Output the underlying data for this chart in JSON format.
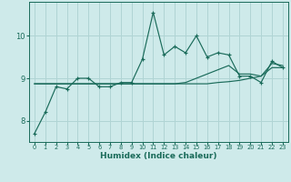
{
  "title": "",
  "xlabel": "Humidex (Indice chaleur)",
  "ylabel": "",
  "bg_color": "#ceeaea",
  "grid_color": "#b0d4d4",
  "line_color": "#1a6b5a",
  "xlim": [
    -0.5,
    23.5
  ],
  "ylim": [
    7.5,
    10.8
  ],
  "xticks": [
    0,
    1,
    2,
    3,
    4,
    5,
    6,
    7,
    8,
    9,
    10,
    11,
    12,
    13,
    14,
    15,
    16,
    17,
    18,
    19,
    20,
    21,
    22,
    23
  ],
  "yticks": [
    8,
    9,
    10
  ],
  "series1_x": [
    0,
    1,
    2,
    3,
    4,
    5,
    6,
    7,
    8,
    9,
    10,
    11,
    12,
    13,
    14,
    15,
    16,
    17,
    18,
    19,
    20,
    21,
    22,
    23
  ],
  "series1_y": [
    7.7,
    8.2,
    8.8,
    8.75,
    9.0,
    9.0,
    8.8,
    8.8,
    8.9,
    8.9,
    9.45,
    10.55,
    9.55,
    9.75,
    9.6,
    10.0,
    9.5,
    9.6,
    9.55,
    9.05,
    9.05,
    8.9,
    9.4,
    9.25
  ],
  "series2_x": [
    0,
    1,
    2,
    3,
    4,
    5,
    6,
    7,
    8,
    9,
    10,
    11,
    12,
    13,
    14,
    15,
    16,
    17,
    18,
    19,
    20,
    21,
    22,
    23
  ],
  "series2_y": [
    8.87,
    8.87,
    8.87,
    8.87,
    8.87,
    8.87,
    8.87,
    8.87,
    8.87,
    8.87,
    8.87,
    8.87,
    8.87,
    8.87,
    8.87,
    8.87,
    8.87,
    8.9,
    8.92,
    8.95,
    9.0,
    9.05,
    9.25,
    9.25
  ],
  "series3_x": [
    0,
    1,
    2,
    3,
    4,
    5,
    6,
    7,
    8,
    9,
    10,
    11,
    12,
    13,
    14,
    15,
    16,
    17,
    18,
    19,
    20,
    21,
    22,
    23
  ],
  "series3_y": [
    8.87,
    8.87,
    8.87,
    8.87,
    8.87,
    8.87,
    8.87,
    8.87,
    8.87,
    8.87,
    8.87,
    8.87,
    8.87,
    8.87,
    8.9,
    9.0,
    9.1,
    9.2,
    9.3,
    9.1,
    9.1,
    9.05,
    9.35,
    9.3
  ]
}
